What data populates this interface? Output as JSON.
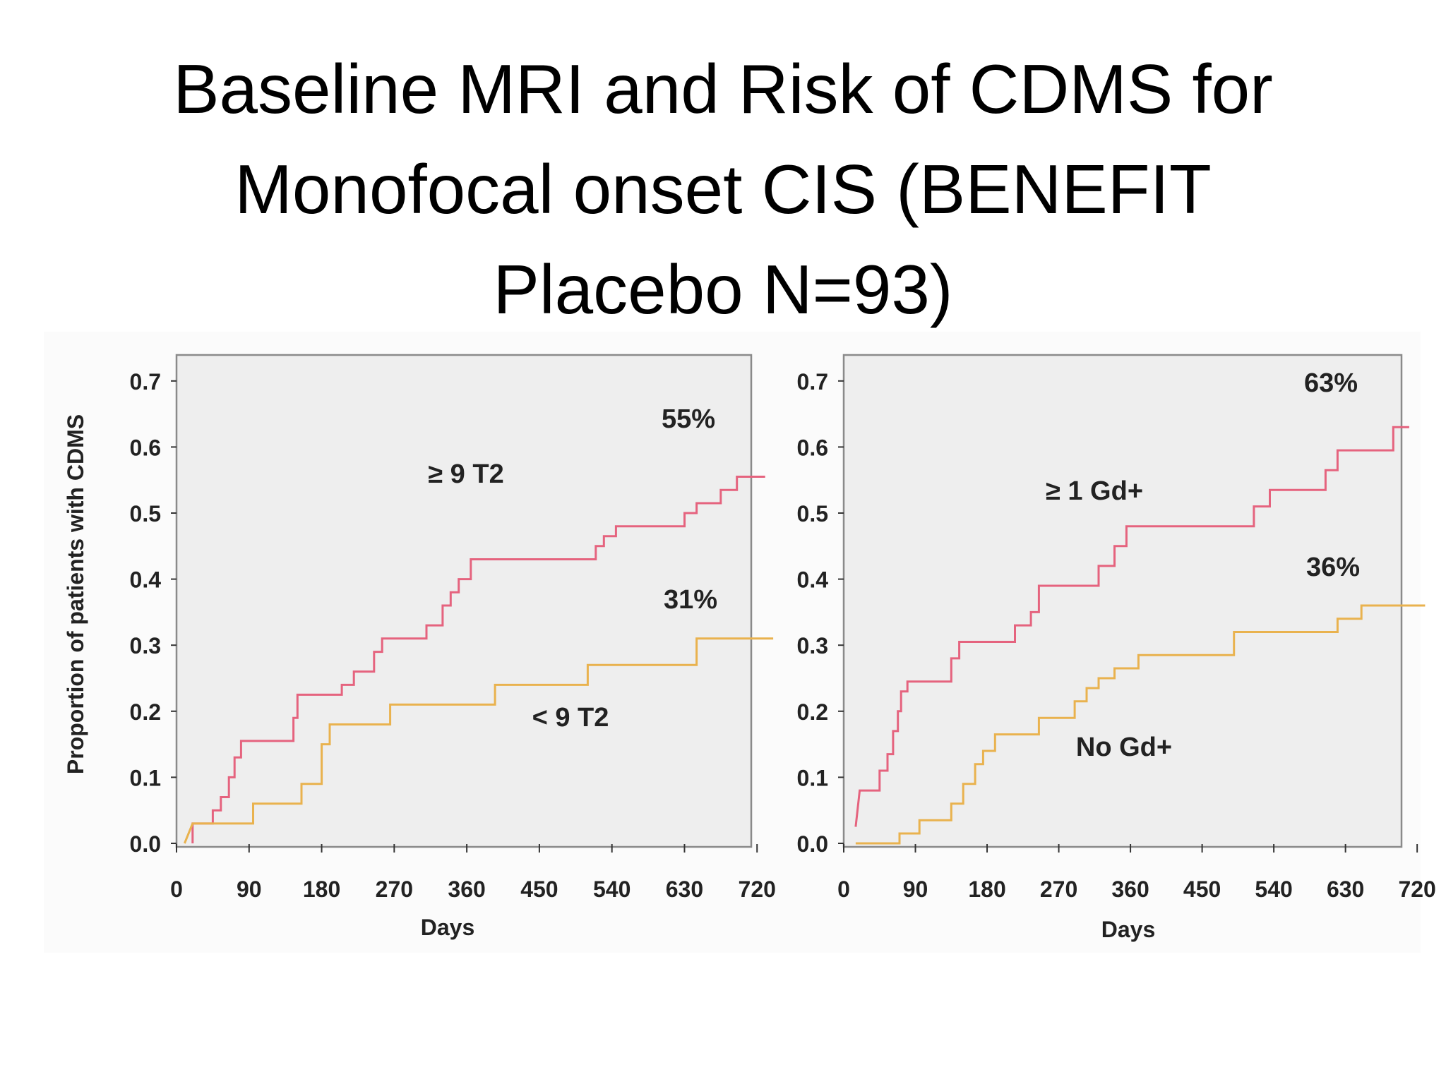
{
  "title": {
    "lines": [
      "Baseline MRI and Risk of CDMS for",
      "Monofocal onset CIS (BENEFIT",
      "Placebo N=93)"
    ]
  },
  "colors": {
    "red_series": "#e5637e",
    "orange_series": "#e9b24e",
    "plot_bg": "#eeeeee",
    "frame": "#8a8a8a"
  },
  "chart_data": [
    {
      "type": "line",
      "ylabel": "Proportion of patients with CDMS",
      "xlabel": "Days",
      "xticks": [
        0,
        90,
        180,
        270,
        360,
        450,
        540,
        630,
        720
      ],
      "yticks": [
        0.0,
        0.1,
        0.2,
        0.3,
        0.4,
        0.5,
        0.6,
        0.7
      ],
      "xtick_labels": [
        "0",
        "90",
        "180",
        "270",
        "360",
        "450",
        "540",
        "630",
        "720"
      ],
      "ytick_labels": [
        "0.0",
        "0.1",
        "0.2",
        "0.3",
        "0.4",
        "0.5",
        "0.6",
        "0.7"
      ],
      "xlim": [
        0,
        750
      ],
      "ylim": [
        0,
        0.7
      ],
      "grid": false,
      "series": [
        {
          "name": "≥ 9 T2",
          "end_label": "55%",
          "color": "#e5637e",
          "points": [
            [
              20,
              0.0
            ],
            [
              20,
              0.03
            ],
            [
              45,
              0.03
            ],
            [
              45,
              0.05
            ],
            [
              55,
              0.05
            ],
            [
              55,
              0.07
            ],
            [
              65,
              0.07
            ],
            [
              65,
              0.1
            ],
            [
              72,
              0.1
            ],
            [
              72,
              0.13
            ],
            [
              80,
              0.13
            ],
            [
              80,
              0.155
            ],
            [
              145,
              0.155
            ],
            [
              145,
              0.19
            ],
            [
              150,
              0.19
            ],
            [
              150,
              0.225
            ],
            [
              205,
              0.225
            ],
            [
              205,
              0.24
            ],
            [
              220,
              0.24
            ],
            [
              220,
              0.26
            ],
            [
              245,
              0.26
            ],
            [
              245,
              0.29
            ],
            [
              255,
              0.29
            ],
            [
              255,
              0.31
            ],
            [
              310,
              0.31
            ],
            [
              310,
              0.33
            ],
            [
              330,
              0.33
            ],
            [
              330,
              0.36
            ],
            [
              340,
              0.36
            ],
            [
              340,
              0.38
            ],
            [
              350,
              0.38
            ],
            [
              350,
              0.4
            ],
            [
              365,
              0.4
            ],
            [
              365,
              0.43
            ],
            [
              520,
              0.43
            ],
            [
              520,
              0.45
            ],
            [
              530,
              0.45
            ],
            [
              530,
              0.465
            ],
            [
              545,
              0.465
            ],
            [
              545,
              0.48
            ],
            [
              630,
              0.48
            ],
            [
              630,
              0.5
            ],
            [
              645,
              0.5
            ],
            [
              645,
              0.515
            ],
            [
              675,
              0.515
            ],
            [
              675,
              0.535
            ],
            [
              695,
              0.535
            ],
            [
              695,
              0.555
            ],
            [
              730,
              0.555
            ]
          ]
        },
        {
          "name": "< 9 T2",
          "end_label": "31%",
          "color": "#e9b24e",
          "points": [
            [
              10,
              0.0
            ],
            [
              20,
              0.03
            ],
            [
              95,
              0.03
            ],
            [
              95,
              0.06
            ],
            [
              155,
              0.06
            ],
            [
              155,
              0.09
            ],
            [
              180,
              0.09
            ],
            [
              180,
              0.15
            ],
            [
              190,
              0.15
            ],
            [
              190,
              0.18
            ],
            [
              265,
              0.18
            ],
            [
              265,
              0.21
            ],
            [
              395,
              0.21
            ],
            [
              395,
              0.24
            ],
            [
              510,
              0.24
            ],
            [
              510,
              0.27
            ],
            [
              645,
              0.27
            ],
            [
              645,
              0.31
            ],
            [
              740,
              0.31
            ]
          ]
        }
      ]
    },
    {
      "type": "line",
      "ylabel": "",
      "xlabel": "Days",
      "xticks": [
        0,
        90,
        180,
        270,
        360,
        450,
        540,
        630,
        720
      ],
      "yticks": [
        0.0,
        0.1,
        0.2,
        0.3,
        0.4,
        0.5,
        0.6,
        0.7
      ],
      "xtick_labels": [
        "0",
        "90",
        "180",
        "270",
        "360",
        "450",
        "540",
        "630",
        "720"
      ],
      "ytick_labels": [
        "0.0",
        "0.1",
        "0.2",
        "0.3",
        "0.4",
        "0.5",
        "0.6",
        "0.7"
      ],
      "xlim": [
        0,
        750
      ],
      "ylim": [
        0,
        0.7
      ],
      "grid": false,
      "series": [
        {
          "name": "≥ 1 Gd+",
          "end_label": "63%",
          "color": "#e5637e",
          "points": [
            [
              15,
              0.025
            ],
            [
              20,
              0.08
            ],
            [
              45,
              0.08
            ],
            [
              45,
              0.11
            ],
            [
              55,
              0.11
            ],
            [
              55,
              0.135
            ],
            [
              62,
              0.135
            ],
            [
              62,
              0.17
            ],
            [
              68,
              0.17
            ],
            [
              68,
              0.2
            ],
            [
              72,
              0.2
            ],
            [
              72,
              0.23
            ],
            [
              80,
              0.23
            ],
            [
              80,
              0.245
            ],
            [
              135,
              0.245
            ],
            [
              135,
              0.28
            ],
            [
              145,
              0.28
            ],
            [
              145,
              0.305
            ],
            [
              215,
              0.305
            ],
            [
              215,
              0.33
            ],
            [
              235,
              0.33
            ],
            [
              235,
              0.35
            ],
            [
              245,
              0.35
            ],
            [
              245,
              0.39
            ],
            [
              320,
              0.39
            ],
            [
              320,
              0.42
            ],
            [
              340,
              0.42
            ],
            [
              340,
              0.45
            ],
            [
              355,
              0.45
            ],
            [
              355,
              0.48
            ],
            [
              515,
              0.48
            ],
            [
              515,
              0.51
            ],
            [
              535,
              0.51
            ],
            [
              535,
              0.535
            ],
            [
              605,
              0.535
            ],
            [
              605,
              0.565
            ],
            [
              620,
              0.565
            ],
            [
              620,
              0.595
            ],
            [
              690,
              0.595
            ],
            [
              690,
              0.63
            ],
            [
              710,
              0.63
            ]
          ]
        },
        {
          "name": "No Gd+",
          "end_label": "36%",
          "color": "#e9b24e",
          "points": [
            [
              15,
              0.0
            ],
            [
              70,
              0.0
            ],
            [
              70,
              0.015
            ],
            [
              95,
              0.015
            ],
            [
              95,
              0.035
            ],
            [
              135,
              0.035
            ],
            [
              135,
              0.06
            ],
            [
              150,
              0.06
            ],
            [
              150,
              0.09
            ],
            [
              165,
              0.09
            ],
            [
              165,
              0.12
            ],
            [
              175,
              0.12
            ],
            [
              175,
              0.14
            ],
            [
              190,
              0.14
            ],
            [
              190,
              0.165
            ],
            [
              245,
              0.165
            ],
            [
              245,
              0.19
            ],
            [
              290,
              0.19
            ],
            [
              290,
              0.215
            ],
            [
              305,
              0.215
            ],
            [
              305,
              0.235
            ],
            [
              320,
              0.235
            ],
            [
              320,
              0.25
            ],
            [
              340,
              0.25
            ],
            [
              340,
              0.265
            ],
            [
              370,
              0.265
            ],
            [
              370,
              0.285
            ],
            [
              490,
              0.285
            ],
            [
              490,
              0.32
            ],
            [
              620,
              0.32
            ],
            [
              620,
              0.34
            ],
            [
              650,
              0.34
            ],
            [
              650,
              0.36
            ],
            [
              730,
              0.36
            ]
          ]
        }
      ]
    }
  ]
}
